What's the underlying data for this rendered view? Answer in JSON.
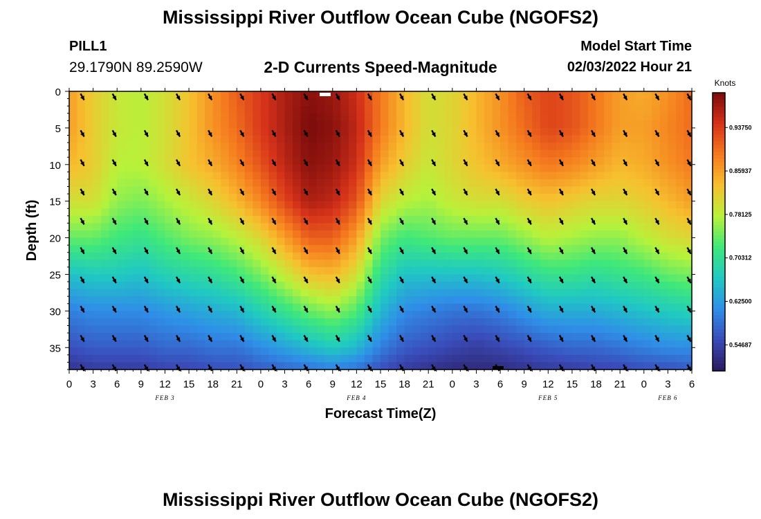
{
  "header": {
    "title": "Mississippi River Outflow Ocean Cube (NGOFS2)",
    "station": "PILL1",
    "coords": "29.1790N  89.2590W",
    "subtitle": "2-D Currents Speed-Magnitude",
    "model_start_label": "Model Start Time",
    "model_start_value": "02/03/2022 Hour 21"
  },
  "footer": {
    "title": "Mississippi River Outflow Ocean Cube (NGOFS2)"
  },
  "chart_data": {
    "type": "heatmap",
    "title": "2-D Currents Speed-Magnitude",
    "xlabel": "Forecast Time(Z)",
    "ylabel": "Depth (ft)",
    "x_tick_labels": [
      "0",
      "3",
      "6",
      "9",
      "12",
      "15",
      "18",
      "21",
      "0",
      "3",
      "6",
      "9",
      "12",
      "15",
      "18",
      "21",
      "0",
      "3",
      "6",
      "9",
      "12",
      "15",
      "18",
      "21",
      "0",
      "3",
      "6"
    ],
    "x_range_hours_from_feb3_00z": [
      0,
      78
    ],
    "date_labels": [
      {
        "text": "FEB 3",
        "hour": 12
      },
      {
        "text": "FEB 4",
        "hour": 36
      },
      {
        "text": "FEB 5",
        "hour": 60
      },
      {
        "text": "FEB 6",
        "hour": 75
      }
    ],
    "y_ticks": [
      0,
      5,
      10,
      15,
      20,
      25,
      30,
      35
    ],
    "ylim": [
      0,
      38
    ],
    "y_inverted": true,
    "colorbar": {
      "unit": "Knots",
      "ticks": [
        "0.93750",
        "0.85937",
        "0.78125",
        "0.70312",
        "0.62500",
        "0.54687"
      ],
      "tick_values": [
        0.9375,
        0.859375,
        0.78125,
        0.703125,
        0.625,
        0.546875
      ],
      "range": [
        0.5,
        1.0
      ],
      "colors": [
        "#2a1a5c",
        "#3a4bb8",
        "#2f8ee8",
        "#20c9c2",
        "#3fe87a",
        "#b8f23a",
        "#f7c02f",
        "#f57a1e",
        "#d6321a",
        "#7a0b0b"
      ]
    },
    "speed_profiles": {
      "depths_ft": [
        0,
        5,
        10,
        15,
        20,
        25,
        30,
        35,
        38
      ],
      "series": [
        {
          "hour": 0,
          "values": [
            0.86,
            0.86,
            0.84,
            0.8,
            0.74,
            0.66,
            0.6,
            0.56,
            0.53
          ]
        },
        {
          "hour": 3,
          "values": [
            0.82,
            0.82,
            0.82,
            0.8,
            0.74,
            0.67,
            0.61,
            0.57,
            0.54
          ]
        },
        {
          "hour": 6,
          "values": [
            0.79,
            0.79,
            0.78,
            0.76,
            0.72,
            0.67,
            0.61,
            0.57,
            0.54
          ]
        },
        {
          "hour": 9,
          "values": [
            0.78,
            0.78,
            0.78,
            0.75,
            0.71,
            0.66,
            0.61,
            0.57,
            0.54
          ]
        },
        {
          "hour": 12,
          "values": [
            0.8,
            0.8,
            0.8,
            0.77,
            0.73,
            0.68,
            0.62,
            0.58,
            0.55
          ]
        },
        {
          "hour": 15,
          "values": [
            0.83,
            0.83,
            0.83,
            0.79,
            0.75,
            0.69,
            0.63,
            0.58,
            0.55
          ]
        },
        {
          "hour": 18,
          "values": [
            0.87,
            0.87,
            0.85,
            0.81,
            0.76,
            0.7,
            0.64,
            0.59,
            0.56
          ]
        },
        {
          "hour": 21,
          "values": [
            0.91,
            0.9,
            0.88,
            0.84,
            0.78,
            0.72,
            0.65,
            0.59,
            0.56
          ]
        },
        {
          "hour": 24,
          "values": [
            0.94,
            0.94,
            0.92,
            0.88,
            0.81,
            0.75,
            0.68,
            0.61,
            0.57
          ]
        },
        {
          "hour": 27,
          "values": [
            0.97,
            0.97,
            0.96,
            0.93,
            0.86,
            0.79,
            0.71,
            0.63,
            0.58
          ]
        },
        {
          "hour": 30,
          "values": [
            0.99,
            1.0,
            0.99,
            0.97,
            0.91,
            0.83,
            0.74,
            0.65,
            0.59
          ]
        },
        {
          "hour": 33,
          "values": [
            0.98,
            0.99,
            0.98,
            0.96,
            0.91,
            0.84,
            0.76,
            0.67,
            0.6
          ]
        },
        {
          "hour": 36,
          "values": [
            0.95,
            0.96,
            0.95,
            0.92,
            0.86,
            0.8,
            0.73,
            0.65,
            0.59
          ]
        },
        {
          "hour": 39,
          "values": [
            0.89,
            0.89,
            0.86,
            0.81,
            0.75,
            0.7,
            0.65,
            0.6,
            0.56
          ]
        },
        {
          "hour": 42,
          "values": [
            0.84,
            0.84,
            0.82,
            0.78,
            0.72,
            0.66,
            0.61,
            0.57,
            0.54
          ]
        },
        {
          "hour": 45,
          "values": [
            0.8,
            0.8,
            0.79,
            0.77,
            0.73,
            0.66,
            0.6,
            0.56,
            0.53
          ]
        },
        {
          "hour": 48,
          "values": [
            0.81,
            0.81,
            0.81,
            0.79,
            0.74,
            0.66,
            0.59,
            0.55,
            0.52
          ]
        },
        {
          "hour": 51,
          "values": [
            0.84,
            0.84,
            0.83,
            0.8,
            0.74,
            0.66,
            0.59,
            0.54,
            0.52
          ]
        },
        {
          "hour": 54,
          "values": [
            0.87,
            0.87,
            0.85,
            0.8,
            0.74,
            0.67,
            0.6,
            0.55,
            0.52
          ]
        },
        {
          "hour": 57,
          "values": [
            0.91,
            0.9,
            0.87,
            0.82,
            0.76,
            0.69,
            0.62,
            0.56,
            0.53
          ]
        },
        {
          "hour": 60,
          "values": [
            0.93,
            0.93,
            0.89,
            0.83,
            0.78,
            0.71,
            0.64,
            0.57,
            0.54
          ]
        },
        {
          "hour": 63,
          "values": [
            0.92,
            0.92,
            0.88,
            0.82,
            0.77,
            0.71,
            0.64,
            0.58,
            0.54
          ]
        },
        {
          "hour": 66,
          "values": [
            0.89,
            0.89,
            0.86,
            0.81,
            0.76,
            0.7,
            0.64,
            0.58,
            0.55
          ]
        },
        {
          "hour": 69,
          "values": [
            0.86,
            0.86,
            0.84,
            0.81,
            0.76,
            0.71,
            0.65,
            0.59,
            0.55
          ]
        },
        {
          "hour": 72,
          "values": [
            0.85,
            0.86,
            0.85,
            0.82,
            0.78,
            0.72,
            0.66,
            0.6,
            0.56
          ]
        },
        {
          "hour": 75,
          "values": [
            0.87,
            0.88,
            0.87,
            0.84,
            0.8,
            0.74,
            0.67,
            0.61,
            0.56
          ]
        },
        {
          "hour": 78,
          "values": [
            0.9,
            0.9,
            0.89,
            0.86,
            0.81,
            0.75,
            0.68,
            0.61,
            0.57
          ]
        }
      ]
    },
    "vector_field": {
      "direction": "southeast",
      "direction_deg": 135,
      "hours": [
        2,
        6,
        10,
        14,
        18,
        22,
        26,
        30,
        34,
        38,
        42,
        46,
        50,
        54,
        58,
        62,
        66,
        70,
        74,
        78
      ],
      "depths_ft": [
        0,
        5,
        9,
        13,
        17,
        21,
        25,
        29,
        33,
        37
      ]
    }
  }
}
